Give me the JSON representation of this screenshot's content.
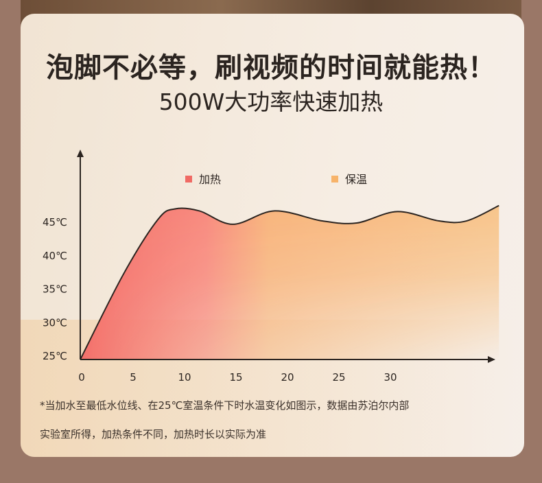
{
  "header": {
    "title": "泡脚不必等，刷视频的时间就能热！",
    "subtitle": "500W大功率快速加热"
  },
  "footnote": {
    "line1": "*当加水至最低水位线、在25℃室温条件下时水温变化如图示，数据由苏泊尔内部",
    "line2": "实验室所得，加热条件不同，加热时长以实际为准"
  },
  "chart_data": {
    "type": "area",
    "title": "500W大功率快速加热",
    "xlabel": "",
    "ylabel": "",
    "x_ticks": [
      0,
      5,
      10,
      15,
      20,
      25,
      30
    ],
    "y_ticks": [
      "25℃",
      "30℃",
      "35℃",
      "40℃",
      "45℃"
    ],
    "y_tick_values": [
      25,
      30,
      35,
      40,
      45
    ],
    "xlim": [
      0,
      41
    ],
    "ylim": [
      25,
      48
    ],
    "legend": [
      {
        "label": "加热",
        "color": "#f06a64"
      },
      {
        "label": "保温",
        "color": "#f7b36a"
      }
    ],
    "legend_position": "top",
    "series": [
      {
        "name": "水温",
        "x": [
          0,
          4.1,
          7.5,
          9.2,
          11.6,
          14.9,
          19,
          23.7,
          27.1,
          31.1,
          35.2,
          37.9,
          41.1
        ],
        "y": [
          25,
          37.2,
          45.4,
          47,
          46.7,
          44.7,
          46.7,
          45.2,
          44.9,
          46.6,
          45.2,
          45.2,
          47.5
        ]
      }
    ],
    "grid": false
  }
}
